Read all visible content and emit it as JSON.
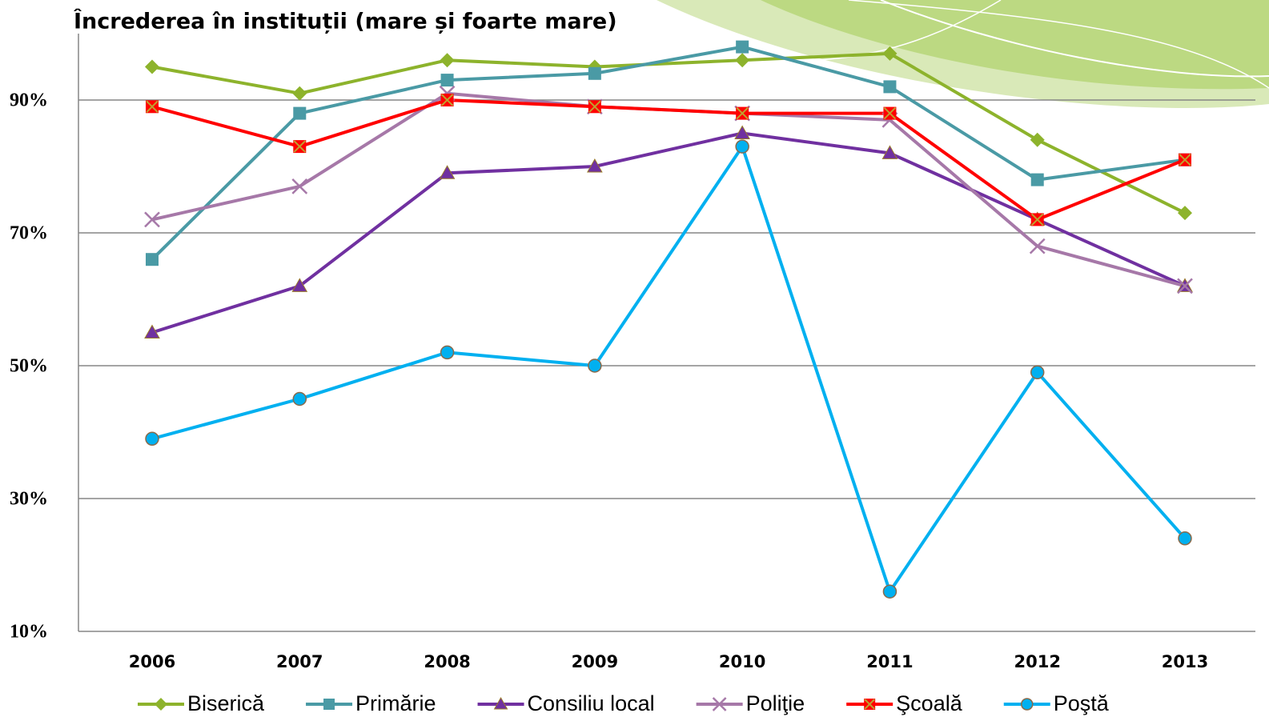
{
  "chart_data": {
    "type": "line",
    "title": "Încrederea  în instituții (mare și foarte mare)",
    "categories": [
      "2006",
      "2007",
      "2008",
      "2009",
      "2010",
      "2011",
      "2012",
      "2013"
    ],
    "ylim": [
      10,
      100
    ],
    "yticks": [
      {
        "value": 10,
        "label": "10%"
      },
      {
        "value": 30,
        "label": "30%"
      },
      {
        "value": 50,
        "label": "50%"
      },
      {
        "value": 70,
        "label": "70%"
      },
      {
        "value": 90,
        "label": "90%"
      }
    ],
    "grid": true,
    "legend": "bottom",
    "series": [
      {
        "name": "Biserică",
        "color": "#8db32c",
        "marker": "diamond",
        "values": [
          95,
          91,
          96,
          95,
          96,
          97,
          84,
          73
        ]
      },
      {
        "name": "Primărie",
        "color": "#4a9aa5",
        "marker": "square",
        "values": [
          66,
          88,
          93,
          94,
          98,
          92,
          78,
          81
        ]
      },
      {
        "name": "Consiliu local",
        "color": "#7030a0",
        "marker": "triangle",
        "values": [
          55,
          62,
          79,
          80,
          85,
          82,
          72,
          62
        ]
      },
      {
        "name": "Poliţie",
        "color": "#a678a8",
        "marker": "x",
        "values": [
          72,
          77,
          91,
          89,
          88,
          87,
          68,
          62
        ]
      },
      {
        "name": "Şcoală",
        "color": "#ff0000",
        "marker": "square-x",
        "values": [
          89,
          83,
          90,
          89,
          88,
          88,
          72,
          81
        ]
      },
      {
        "name": "Poştă",
        "color": "#00b0f0",
        "marker": "circle",
        "values": [
          39,
          45,
          52,
          50,
          83,
          16,
          49,
          24
        ]
      }
    ]
  }
}
